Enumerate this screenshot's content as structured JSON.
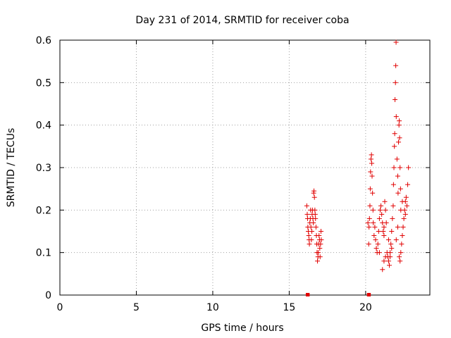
{
  "chart_data": {
    "type": "scatter",
    "title": "Day 231 of 2014, SRMTID for receiver coba",
    "xlabel": "GPS time / hours",
    "ylabel": "SRMTID / TECUs",
    "xlim": [
      0,
      24.2
    ],
    "ylim": [
      0,
      0.6
    ],
    "xticks": [
      0,
      5,
      10,
      15,
      20
    ],
    "xtick_labels": [
      "0",
      "5",
      "10",
      "15",
      "20"
    ],
    "yticks": [
      0,
      0.1,
      0.2,
      0.3,
      0.4,
      0.5,
      0.6
    ],
    "ytick_labels": [
      "0",
      "0.1",
      "0.2",
      "0.3",
      "0.4",
      "0.5",
      "0.6"
    ],
    "grid": true,
    "marker": "+",
    "color": "#e00000",
    "series": [
      {
        "name": "SRMTID",
        "points": [
          [
            16.2,
            0.0
          ],
          [
            16.22,
            0.0
          ],
          [
            20.2,
            0.0
          ],
          [
            20.22,
            0.0
          ],
          [
            16.15,
            0.21
          ],
          [
            16.18,
            0.19
          ],
          [
            16.2,
            0.18
          ],
          [
            16.22,
            0.16
          ],
          [
            16.25,
            0.15
          ],
          [
            16.28,
            0.14
          ],
          [
            16.3,
            0.13
          ],
          [
            16.32,
            0.12
          ],
          [
            16.35,
            0.17
          ],
          [
            16.38,
            0.18
          ],
          [
            16.4,
            0.2
          ],
          [
            16.42,
            0.16
          ],
          [
            16.45,
            0.13
          ],
          [
            16.48,
            0.15
          ],
          [
            16.5,
            0.19
          ],
          [
            16.52,
            0.2
          ],
          [
            16.55,
            0.18
          ],
          [
            16.58,
            0.17
          ],
          [
            16.6,
            0.24
          ],
          [
            16.62,
            0.245
          ],
          [
            16.65,
            0.23
          ],
          [
            16.68,
            0.2
          ],
          [
            16.7,
            0.19
          ],
          [
            16.72,
            0.18
          ],
          [
            16.75,
            0.16
          ],
          [
            16.78,
            0.14
          ],
          [
            16.8,
            0.12
          ],
          [
            16.82,
            0.1
          ],
          [
            16.85,
            0.08
          ],
          [
            16.88,
            0.09
          ],
          [
            16.9,
            0.1
          ],
          [
            16.92,
            0.12
          ],
          [
            16.95,
            0.14
          ],
          [
            16.98,
            0.13
          ],
          [
            17.0,
            0.11
          ],
          [
            17.02,
            0.09
          ],
          [
            17.05,
            0.12
          ],
          [
            17.08,
            0.15
          ],
          [
            17.1,
            0.13
          ],
          [
            20.15,
            0.17
          ],
          [
            20.2,
            0.12
          ],
          [
            20.22,
            0.16
          ],
          [
            20.25,
            0.18
          ],
          [
            20.28,
            0.21
          ],
          [
            20.3,
            0.25
          ],
          [
            20.32,
            0.29
          ],
          [
            20.35,
            0.32
          ],
          [
            20.38,
            0.33
          ],
          [
            20.4,
            0.31
          ],
          [
            20.42,
            0.28
          ],
          [
            20.45,
            0.24
          ],
          [
            20.48,
            0.2
          ],
          [
            20.5,
            0.17
          ],
          [
            20.55,
            0.14
          ],
          [
            20.6,
            0.16
          ],
          [
            20.65,
            0.13
          ],
          [
            20.7,
            0.11
          ],
          [
            20.75,
            0.1
          ],
          [
            20.8,
            0.12
          ],
          [
            20.85,
            0.15
          ],
          [
            20.9,
            0.18
          ],
          [
            20.95,
            0.2
          ],
          [
            21.0,
            0.21
          ],
          [
            21.05,
            0.19
          ],
          [
            21.1,
            0.17
          ],
          [
            21.15,
            0.15
          ],
          [
            21.2,
            0.14
          ],
          [
            21.25,
            0.22
          ],
          [
            21.3,
            0.2
          ],
          [
            21.35,
            0.17
          ],
          [
            21.4,
            0.1
          ],
          [
            21.45,
            0.09
          ],
          [
            21.5,
            0.08
          ],
          [
            21.55,
            0.07
          ],
          [
            21.6,
            0.09
          ],
          [
            21.65,
            0.12
          ],
          [
            21.7,
            0.15
          ],
          [
            21.75,
            0.18
          ],
          [
            21.8,
            0.21
          ],
          [
            21.82,
            0.26
          ],
          [
            21.85,
            0.3
          ],
          [
            21.88,
            0.35
          ],
          [
            21.9,
            0.38
          ],
          [
            21.92,
            0.46
          ],
          [
            21.95,
            0.5
          ],
          [
            21.97,
            0.54
          ],
          [
            21.99,
            0.595
          ],
          [
            22.0,
            0.42
          ],
          [
            22.05,
            0.32
          ],
          [
            22.1,
            0.28
          ],
          [
            22.12,
            0.24
          ],
          [
            22.15,
            0.36
          ],
          [
            22.18,
            0.4
          ],
          [
            22.2,
            0.41
          ],
          [
            22.22,
            0.37
          ],
          [
            22.25,
            0.3
          ],
          [
            22.28,
            0.25
          ],
          [
            22.3,
            0.2
          ],
          [
            22.2,
            0.09
          ],
          [
            22.25,
            0.08
          ],
          [
            22.3,
            0.1
          ],
          [
            22.35,
            0.12
          ],
          [
            22.4,
            0.14
          ],
          [
            22.45,
            0.16
          ],
          [
            22.5,
            0.18
          ],
          [
            22.55,
            0.2
          ],
          [
            22.6,
            0.22
          ],
          [
            22.65,
            0.23
          ],
          [
            22.7,
            0.21
          ],
          [
            22.75,
            0.26
          ],
          [
            22.8,
            0.3
          ],
          [
            21.1,
            0.06
          ],
          [
            21.2,
            0.08
          ],
          [
            21.3,
            0.09
          ],
          [
            21.6,
            0.1
          ],
          [
            21.7,
            0.11
          ],
          [
            22.0,
            0.13
          ],
          [
            21.5,
            0.13
          ],
          [
            21.2,
            0.16
          ],
          [
            20.9,
            0.1
          ],
          [
            22.1,
            0.16
          ],
          [
            22.4,
            0.22
          ],
          [
            22.6,
            0.19
          ]
        ]
      }
    ]
  }
}
